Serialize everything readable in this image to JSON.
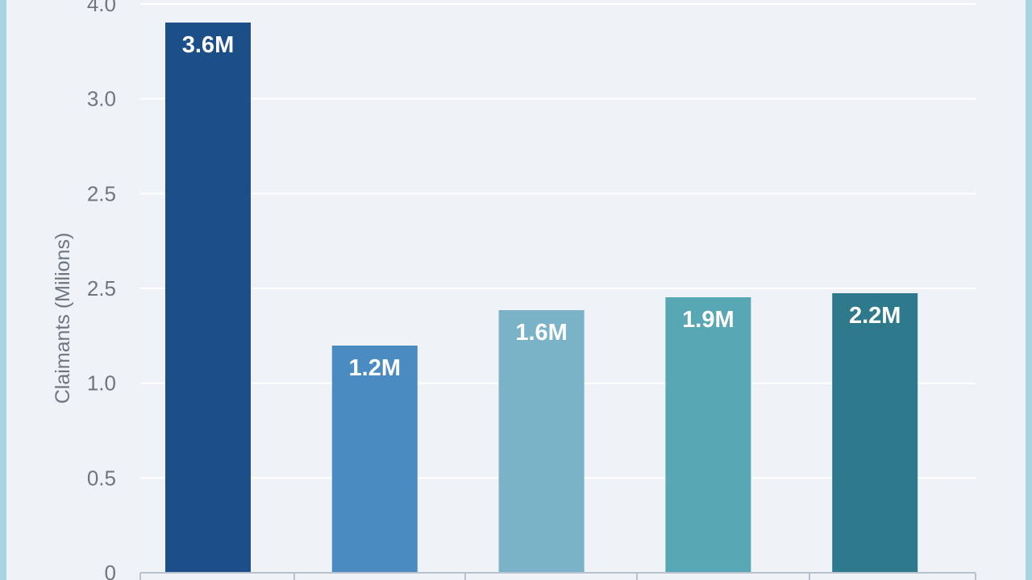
{
  "chart_data": {
    "type": "bar",
    "ylabel": "Claimants (Milions)",
    "y_ticks": [
      "4.0",
      "3.0",
      "2.5",
      "2.5",
      "1.0",
      "0.5",
      "0"
    ],
    "categories": [
      "",
      "",
      "",
      "",
      ""
    ],
    "values": [
      3.6,
      1.2,
      1.6,
      1.9,
      2.2
    ],
    "data_labels": [
      "3.6M",
      "1.2M",
      "1.6M",
      "1.9M",
      "2.2M"
    ],
    "colors": [
      "#1c4f87",
      "#4a8bc2",
      "#7ab3c8",
      "#58a7b4",
      "#2e7a8c"
    ],
    "grid": true,
    "legend": "none"
  }
}
